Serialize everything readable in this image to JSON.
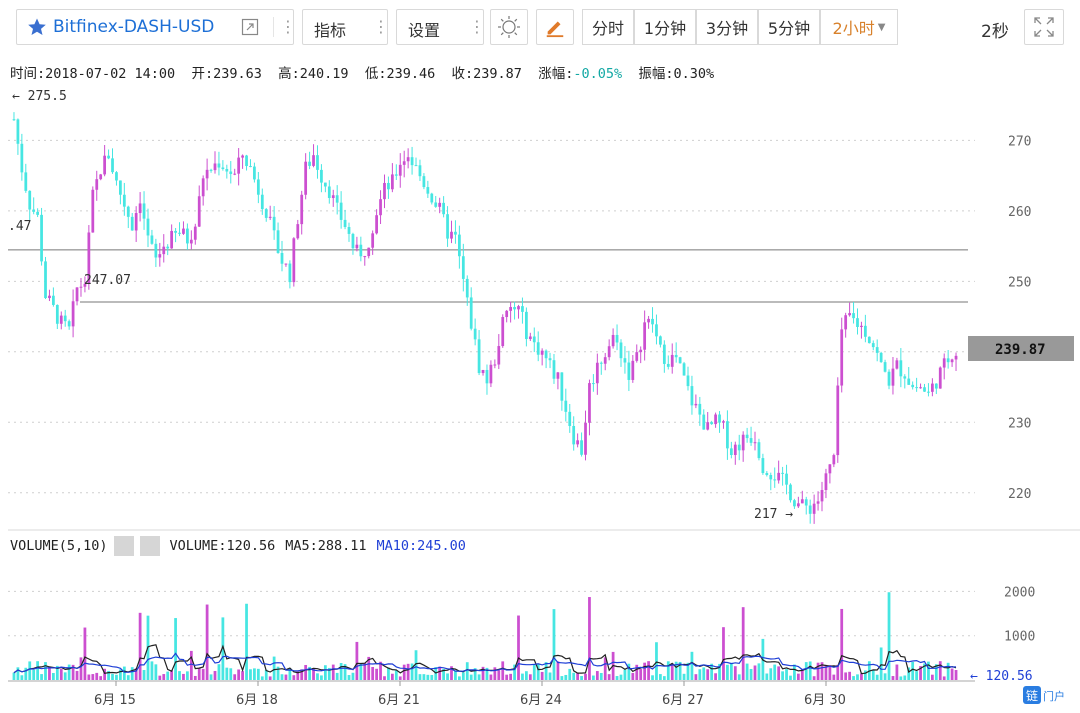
{
  "toolbar": {
    "symbol": "Bitfinex-DASH-USD",
    "indicators_label": "指标",
    "settings_label": "设置",
    "intervals": [
      "分时",
      "1分钟",
      "3分钟",
      "5分钟",
      "2小时"
    ],
    "active_interval": "2小时",
    "refresh_label": "2秒",
    "accent_color": "#d8812b"
  },
  "ohlc": {
    "time_label": "时间:",
    "time": "2018-07-02 14:00",
    "open_label": "开:",
    "open": "239.63",
    "high_label": "高:",
    "high": "240.19",
    "low_label": "低:",
    "low": "239.46",
    "close_label": "收:",
    "close": "239.87",
    "change_label": "涨幅:",
    "change": "-0.05%",
    "amplitude_label": "振幅:",
    "amplitude": "0.30%"
  },
  "volume_legend": {
    "name": "VOLUME(5,10)",
    "volume_label": "VOLUME:",
    "volume": "120.56",
    "ma5_label": "MA5:",
    "ma5": "288.11",
    "ma10_label": "MA10:",
    "ma10": "245.00"
  },
  "annotations": {
    "max_label": "← 275.5",
    "min_label": "217 →",
    "level_left_label": ".47",
    "level_label": "247.07",
    "price_tag": "239.87",
    "volume_tag": "← 120.56"
  },
  "colors": {
    "up": "#cc4fd0",
    "down": "#46e6e2",
    "ma5": "#222222",
    "ma10": "#1f3fd6",
    "grid": "#cfcfcf"
  },
  "chart_data": {
    "type": "candlestick",
    "price_axis": {
      "ticks": [
        220,
        230,
        240,
        250,
        260,
        270
      ],
      "range": [
        215,
        278
      ]
    },
    "volume_axis": {
      "ticks": [
        1000,
        2000
      ],
      "range": [
        0,
        2800
      ]
    },
    "x_ticks": [
      "6月 15",
      "6月 18",
      "6月 21",
      "6月 24",
      "6月 27",
      "6月 30"
    ],
    "max_price": 275.5,
    "min_price": 217,
    "horizontal_levels": [
      254.47,
      247.07
    ],
    "last_close": 239.87,
    "last_volume": 120.56,
    "ma5": 288.11,
    "ma10": 245.0,
    "close_path": [
      273,
      266,
      261,
      259,
      248,
      246,
      244,
      243,
      249,
      250,
      262,
      266,
      268,
      264,
      261,
      258,
      262,
      256,
      253,
      255,
      256,
      257,
      256,
      258,
      265,
      266,
      267,
      266,
      265,
      268,
      266,
      263,
      260,
      256,
      253,
      251,
      259,
      266,
      268,
      265,
      263,
      260,
      258,
      255,
      253,
      256,
      260,
      263,
      264,
      267,
      268,
      266,
      264,
      262,
      260,
      257,
      256,
      250,
      244,
      238,
      236,
      239,
      244,
      246,
      246,
      243,
      241,
      240,
      238,
      236,
      232,
      228,
      226,
      235,
      238,
      240,
      242,
      240,
      237,
      239,
      244,
      244,
      240,
      239,
      239,
      236,
      233,
      231,
      229,
      230,
      229,
      226,
      227,
      228,
      228,
      224,
      223,
      222,
      221,
      219,
      218,
      218,
      219,
      222,
      225,
      243,
      245,
      244,
      243,
      241,
      238,
      236,
      238,
      237,
      235,
      235,
      234,
      236,
      238,
      240
    ]
  }
}
